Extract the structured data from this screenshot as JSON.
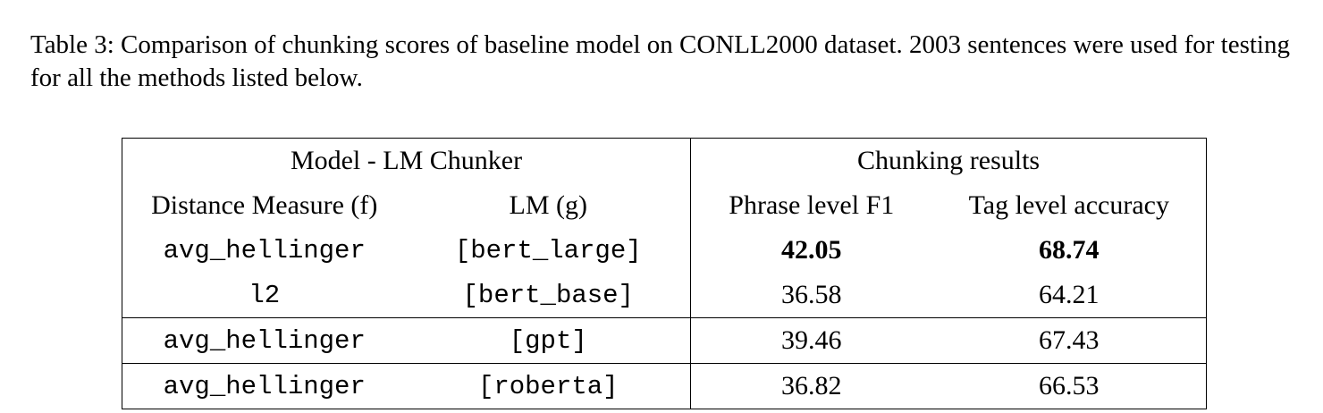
{
  "caption": "Table 3: Comparison of chunking scores of baseline model on CONLL2000 dataset. 2003 sentences were used for testing for all the methods listed below.",
  "table": {
    "group_headers": [
      "Model - LM Chunker",
      "Chunking results"
    ],
    "col_headers": [
      "Distance Measure (f)",
      "LM (g)",
      "Phrase level F1",
      "Tag level accuracy"
    ],
    "rows": [
      {
        "f": "avg_hellinger",
        "g": "[bert_large]",
        "f1": "42.05",
        "acc": "68.74"
      },
      {
        "f": "l2",
        "g": "[bert_base]",
        "f1": "36.58",
        "acc": "64.21"
      },
      {
        "f": "avg_hellinger",
        "g": "[gpt]",
        "f1": "39.46",
        "acc": "67.43"
      },
      {
        "f": "avg_hellinger",
        "g": "[roberta]",
        "f1": "36.82",
        "acc": "66.53"
      }
    ]
  }
}
